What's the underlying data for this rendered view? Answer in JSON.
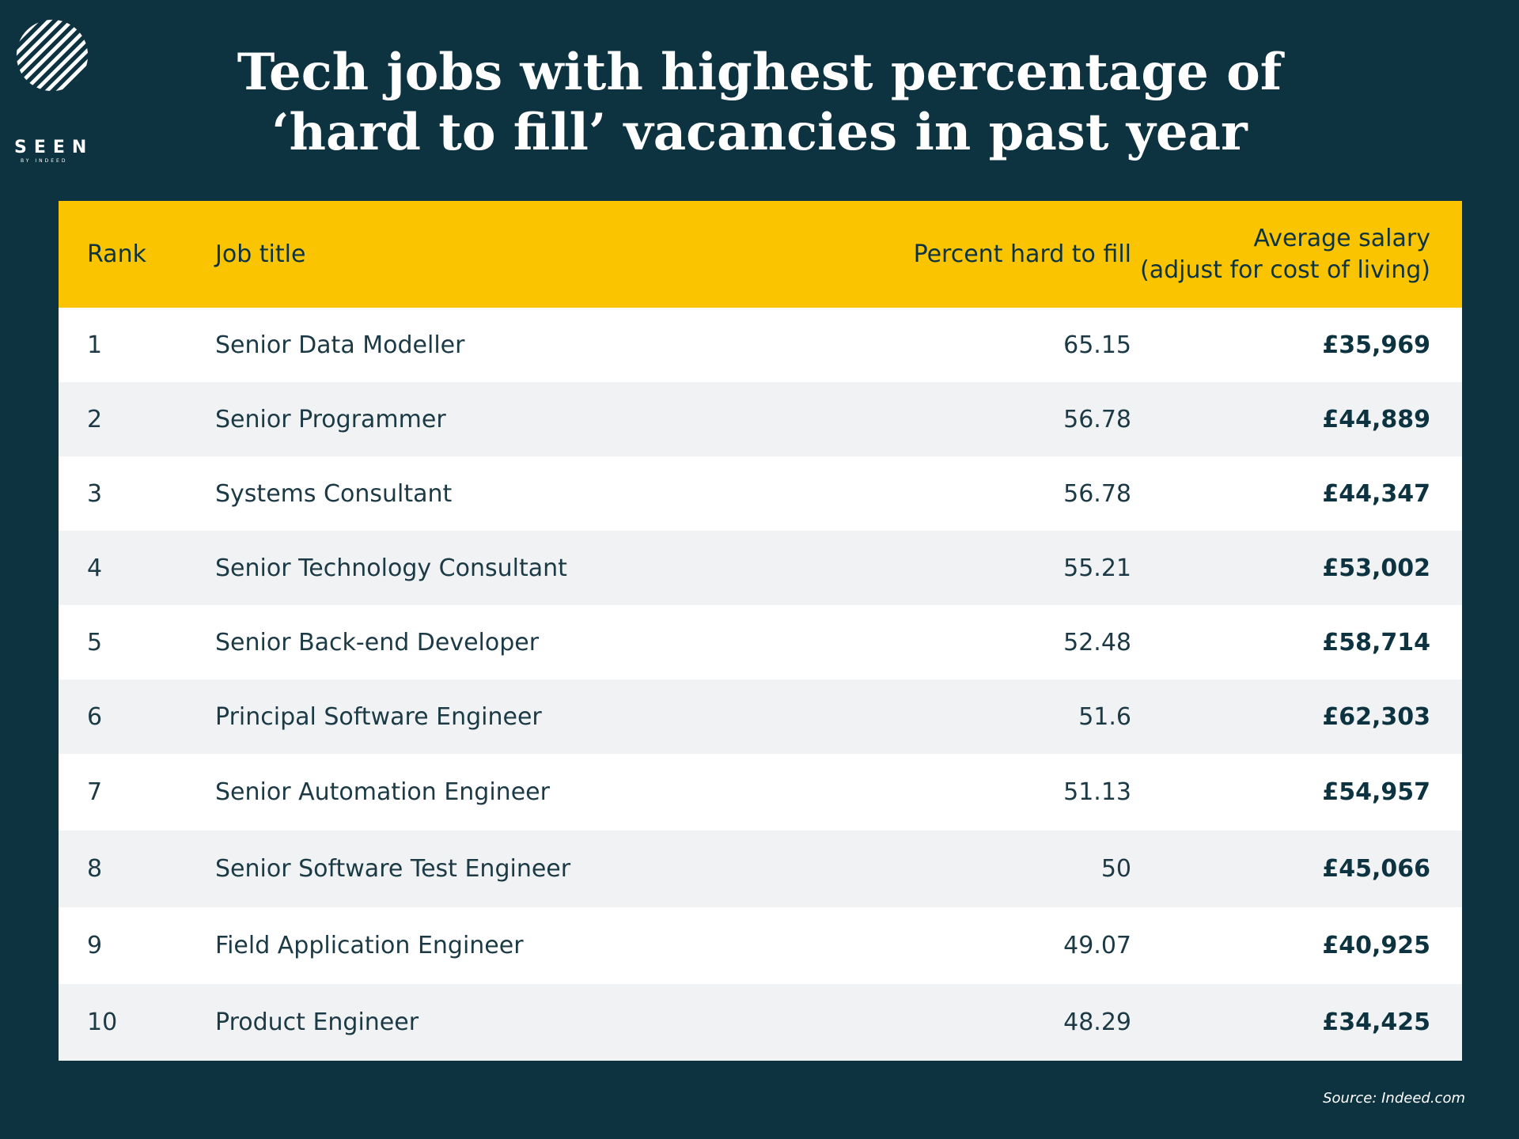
{
  "logo": {
    "word": "SEEN",
    "sub": "BY INDEED"
  },
  "title": {
    "line1": "Tech jobs with highest percentage of",
    "line2": "‘hard to fill’ vacancies in past year"
  },
  "colors": {
    "background": "#0d3340",
    "header": "#fac500",
    "row_alt": "#f0f2f3"
  },
  "chart_data": {
    "type": "table",
    "columns": [
      "Rank",
      "Job title",
      "Percent hard to fill",
      "Average salary (adjust for cost of living)"
    ],
    "header": {
      "rank": "Rank",
      "job": "Job title",
      "pct": "Percent hard to fill",
      "salary_line1": "Average salary",
      "salary_line2": "(adjust for cost of living)"
    },
    "rows": [
      {
        "rank": "1",
        "job": "Senior Data Modeller",
        "pct": "65.15",
        "salary": "£35,969"
      },
      {
        "rank": "2",
        "job": "Senior Programmer",
        "pct": "56.78",
        "salary": "£44,889"
      },
      {
        "rank": "3",
        "job": "Systems Consultant",
        "pct": "56.78",
        "salary": "£44,347"
      },
      {
        "rank": "4",
        "job": "Senior Technology Consultant",
        "pct": "55.21",
        "salary": "£53,002"
      },
      {
        "rank": "5",
        "job": "Senior Back-end Developer",
        "pct": "52.48",
        "salary": "£58,714"
      },
      {
        "rank": "6",
        "job": "Principal Software Engineer",
        "pct": "51.6",
        "salary": "£62,303"
      },
      {
        "rank": "7",
        "job": "Senior Automation Engineer",
        "pct": "51.13",
        "salary": "£54,957"
      },
      {
        "rank": "8",
        "job": "Senior Software Test Engineer",
        "pct": "50",
        "salary": "£45,066"
      },
      {
        "rank": "9",
        "job": "Field Application Engineer",
        "pct": "49.07",
        "salary": "£40,925"
      },
      {
        "rank": "10",
        "job": "Product Engineer",
        "pct": "48.29",
        "salary": "£34,425"
      }
    ]
  },
  "source": "Source: Indeed.com"
}
